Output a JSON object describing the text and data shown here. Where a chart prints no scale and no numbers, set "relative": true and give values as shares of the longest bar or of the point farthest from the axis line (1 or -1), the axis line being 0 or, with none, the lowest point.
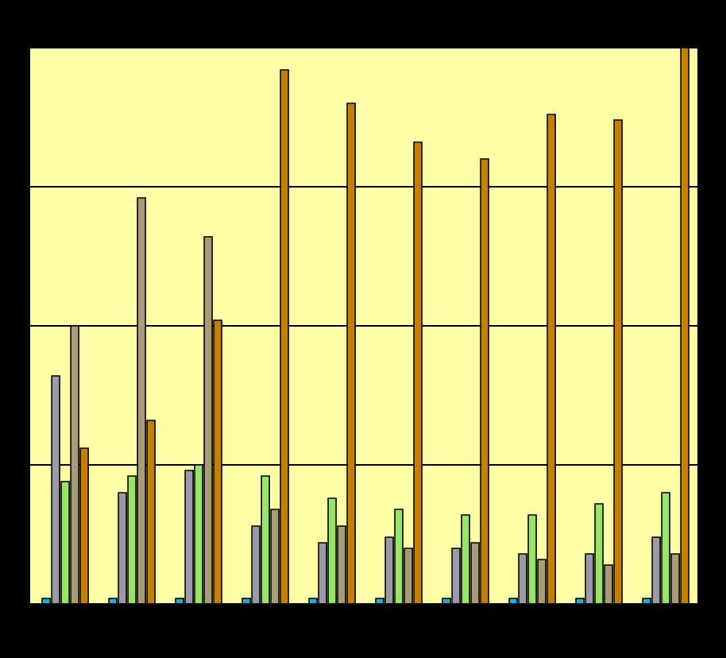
{
  "chart_data": {
    "type": "bar",
    "relative": true,
    "grid": "y",
    "tick_labels": false,
    "categories": [
      null,
      null,
      null,
      null,
      null,
      null,
      null,
      null,
      null,
      null
    ],
    "series": [
      {
        "color": "#2aa6e0",
        "values": [
          0.01,
          0.01,
          0.01,
          0.01,
          0.01,
          0.01,
          0.01,
          0.01,
          0.01,
          0.01
        ]
      },
      {
        "color": "#9a9aa8",
        "values": [
          0.41,
          0.2,
          0.24,
          0.14,
          0.11,
          0.12,
          0.1,
          0.09,
          0.09,
          0.12
        ]
      },
      {
        "color": "#99e36b",
        "values": [
          0.22,
          0.23,
          0.25,
          0.23,
          0.19,
          0.17,
          0.16,
          0.16,
          0.18,
          0.2
        ]
      },
      {
        "color": "#a99b7a",
        "values": [
          0.5,
          0.73,
          0.66,
          0.17,
          0.14,
          0.1,
          0.11,
          0.08,
          0.07,
          0.09
        ]
      },
      {
        "color": "#c47f00",
        "values": [
          0.28,
          0.33,
          0.51,
          0.96,
          0.9,
          0.83,
          0.8,
          0.88,
          0.87,
          1
        ]
      }
    ]
  }
}
